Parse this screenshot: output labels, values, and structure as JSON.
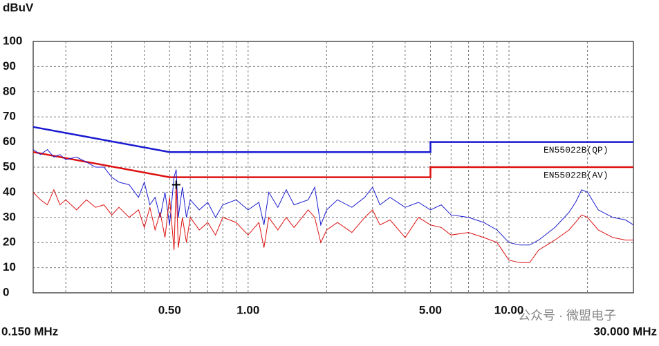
{
  "chart_data": {
    "type": "line",
    "y_label": "dBuV",
    "xscale": "log",
    "xlim": [
      0.15,
      30
    ],
    "ylim": [
      0,
      100
    ],
    "xticks": [
      {
        "value": 0.15,
        "label": "0.150 MHz"
      },
      {
        "value": 0.5,
        "label": "0.50"
      },
      {
        "value": 1,
        "label": "1.00"
      },
      {
        "value": 5,
        "label": "5.00"
      },
      {
        "value": 10,
        "label": "10.00"
      },
      {
        "value": 30,
        "label": "30.000 MHz"
      }
    ],
    "xgrid": [
      0.2,
      0.3,
      0.4,
      0.5,
      0.6,
      0.7,
      0.8,
      0.9,
      1,
      2,
      3,
      4,
      5,
      6,
      7,
      8,
      9,
      10,
      20
    ],
    "yticks": [
      0,
      10,
      20,
      30,
      40,
      50,
      60,
      70,
      80,
      90,
      100
    ],
    "grid": true,
    "watermark": "公众号 · 微盟电子",
    "series": [
      {
        "name": "EN55022B(QP)",
        "color": "#1a1ad0",
        "x": [
          0.15,
          0.5,
          5,
          5,
          30
        ],
        "values": [
          66,
          56,
          56,
          60,
          60
        ]
      },
      {
        "name": "EN55022B(AV)",
        "color": "#dd1010",
        "x": [
          0.15,
          0.5,
          5,
          5,
          30
        ],
        "values": [
          56,
          46,
          46,
          50,
          50
        ]
      },
      {
        "color": "#1a1ad0",
        "x": [
          0.15,
          0.16,
          0.17,
          0.18,
          0.19,
          0.2,
          0.22,
          0.24,
          0.26,
          0.28,
          0.3,
          0.32,
          0.35,
          0.38,
          0.4,
          0.42,
          0.44,
          0.46,
          0.48,
          0.5,
          0.52,
          0.53,
          0.54,
          0.56,
          0.58,
          0.6,
          0.65,
          0.7,
          0.75,
          0.8,
          0.9,
          1,
          1.1,
          1.15,
          1.2,
          1.3,
          1.4,
          1.5,
          1.7,
          1.8,
          1.9,
          2,
          2.2,
          2.5,
          2.8,
          3,
          3.2,
          3.5,
          4,
          4.5,
          5,
          5.5,
          6,
          7,
          8,
          9,
          10,
          11,
          12,
          13,
          15,
          17,
          18,
          19,
          20,
          22,
          25,
          28,
          30
        ],
        "values": [
          57,
          55,
          57,
          54,
          55,
          53,
          54,
          52,
          50,
          50,
          46,
          44,
          43,
          38,
          44,
          35,
          38,
          30,
          40,
          27,
          46,
          49,
          30,
          42,
          30,
          37,
          33,
          36,
          30,
          35,
          37,
          33,
          36,
          27,
          40,
          34,
          41,
          35,
          37,
          42,
          27,
          33,
          37,
          34,
          38,
          42,
          35,
          38,
          34,
          36,
          33,
          35,
          31,
          30,
          28,
          25,
          20,
          19,
          19,
          21,
          26,
          32,
          36,
          41,
          40,
          33,
          30,
          29,
          27
        ]
      },
      {
        "color": "#dd1010",
        "x": [
          0.15,
          0.16,
          0.17,
          0.18,
          0.19,
          0.2,
          0.22,
          0.24,
          0.26,
          0.28,
          0.3,
          0.32,
          0.35,
          0.38,
          0.4,
          0.42,
          0.44,
          0.46,
          0.48,
          0.5,
          0.52,
          0.53,
          0.54,
          0.56,
          0.58,
          0.6,
          0.65,
          0.7,
          0.75,
          0.8,
          0.9,
          1,
          1.1,
          1.15,
          1.2,
          1.3,
          1.4,
          1.5,
          1.7,
          1.8,
          1.9,
          2,
          2.2,
          2.5,
          2.8,
          3,
          3.2,
          3.5,
          4,
          4.5,
          5,
          5.5,
          6,
          7,
          8,
          9,
          10,
          11,
          12,
          13,
          15,
          17,
          18,
          19,
          20,
          22,
          25,
          28,
          30
        ],
        "values": [
          40,
          37,
          35,
          41,
          35,
          37,
          33,
          37,
          34,
          35,
          31,
          34,
          30,
          33,
          26,
          34,
          25,
          32,
          22,
          38,
          17,
          44,
          18,
          30,
          20,
          30,
          25,
          28,
          23,
          30,
          28,
          23,
          28,
          18,
          30,
          25,
          30,
          26,
          33,
          30,
          20,
          25,
          28,
          24,
          30,
          33,
          27,
          29,
          22,
          30,
          27,
          26,
          23,
          24,
          22,
          20,
          13,
          12,
          12,
          17,
          21,
          25,
          28,
          31,
          30,
          25,
          22,
          21,
          21
        ]
      }
    ]
  }
}
